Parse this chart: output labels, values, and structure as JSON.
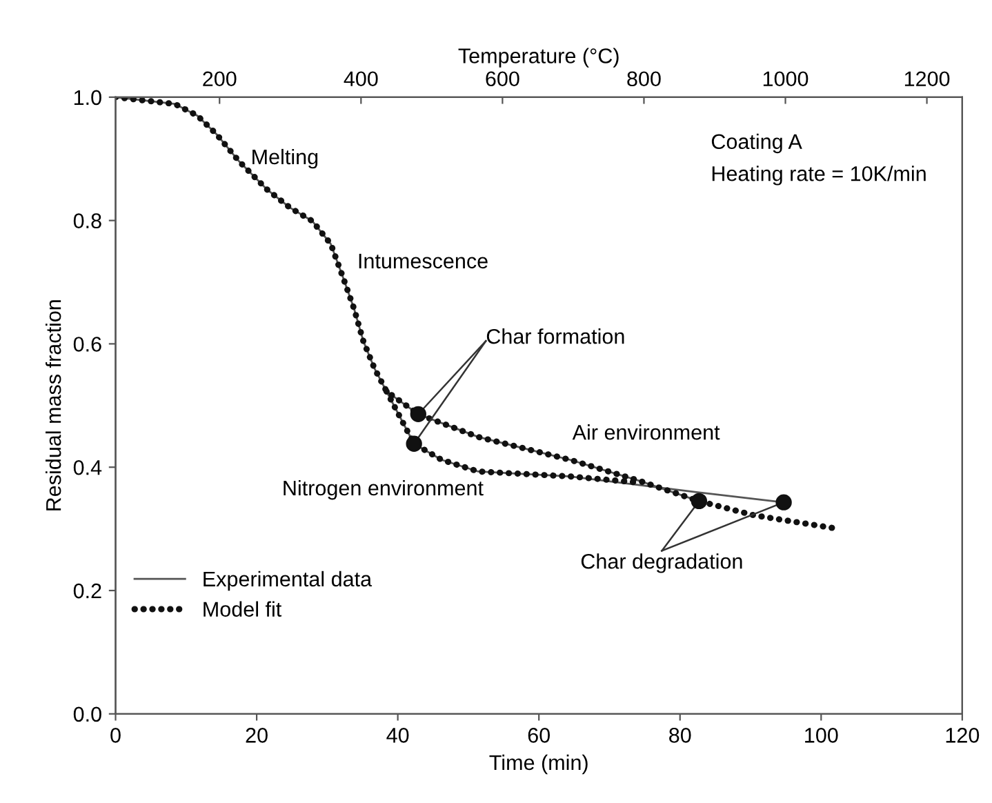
{
  "chart_data": {
    "type": "line",
    "xlabel": "Time (min)",
    "ylabel": "Residual mass fraction",
    "x2label": "Temperature (°C)",
    "xlim": [
      0,
      120
    ],
    "xticks": [
      0,
      20,
      40,
      60,
      80,
      100,
      120
    ],
    "ylim": [
      0.0,
      1.0
    ],
    "yticks": [
      {
        "value": 0.0,
        "label": "0.0"
      },
      0.2,
      0.4,
      0.6,
      0.8,
      {
        "value": 1.0,
        "label": "1.0"
      }
    ],
    "x2lim": [
      53,
      1250
    ],
    "x2ticks": [
      200,
      400,
      600,
      800,
      1000,
      1200
    ],
    "grid": false,
    "legend": "bottom left",
    "series": [
      {
        "name": "Experimental data",
        "line_style": "solid",
        "color": "#555555",
        "x": [
          0,
          8.4,
          11.6,
          14.3,
          17.5,
          21.4,
          24.7,
          27.9,
          30.5,
          32.2,
          33.8,
          35.1,
          36.7,
          38.4,
          42.9,
          51.4,
          64.4,
          74.2,
          82.7
        ],
        "values": [
          1.0,
          0.989,
          0.97,
          0.94,
          0.896,
          0.851,
          0.821,
          0.799,
          0.762,
          0.709,
          0.657,
          0.605,
          0.56,
          0.523,
          0.486,
          0.449,
          0.412,
          0.378,
          0.345
        ]
      },
      {
        "line_style": "solid",
        "color": "#555555",
        "x": [
          38.4,
          42.3,
          46.2,
          51.4,
          64.4,
          82.7,
          94.7
        ],
        "values": [
          0.523,
          0.438,
          0.412,
          0.393,
          0.385,
          0.359,
          0.343
        ]
      },
      {
        "name": "Model fit",
        "line_style": "dotted",
        "color": "#111111",
        "x": [
          0,
          8.4,
          11.6,
          14.3,
          17.5,
          21.4,
          24.7,
          27.9,
          30.5,
          32.2,
          33.8,
          35.1,
          36.7,
          38.4,
          42.9,
          51.4,
          64.4,
          74.2,
          82.7,
          90.5,
          101.9
        ],
        "values": [
          1.0,
          0.989,
          0.97,
          0.94,
          0.896,
          0.851,
          0.821,
          0.799,
          0.762,
          0.709,
          0.657,
          0.605,
          0.56,
          0.523,
          0.486,
          0.449,
          0.412,
          0.378,
          0.345,
          0.322,
          0.301
        ]
      },
      {
        "line_style": "dotted",
        "color": "#111111",
        "x": [
          38.4,
          42.3,
          46.2,
          51.4,
          64.4,
          74.2
        ],
        "values": [
          0.523,
          0.438,
          0.412,
          0.393,
          0.385,
          0.375
        ]
      },
      {
        "type": "scatter",
        "marker": "circle",
        "color": "#111111",
        "x": [
          42.9,
          42.3,
          82.7,
          94.7
        ],
        "values": [
          0.486,
          0.438,
          0.345,
          0.343
        ]
      }
    ],
    "annotations": [
      {
        "text": "Melting",
        "x": 18,
        "y": 0.88
      },
      {
        "text": "Intumescence",
        "x": 32.5,
        "y": 0.7
      },
      {
        "text": "Char formation",
        "x": 42.9,
        "y": 0.486
      },
      {
        "text": "Air environment",
        "x": 62,
        "y": 0.42
      },
      {
        "text": "Nitrogen environment",
        "x": 50,
        "y": 0.39
      },
      {
        "text": "Char degradation",
        "x": 82.7,
        "y": 0.345
      },
      "Coating A",
      "Heating rate = 10K/min"
    ]
  }
}
